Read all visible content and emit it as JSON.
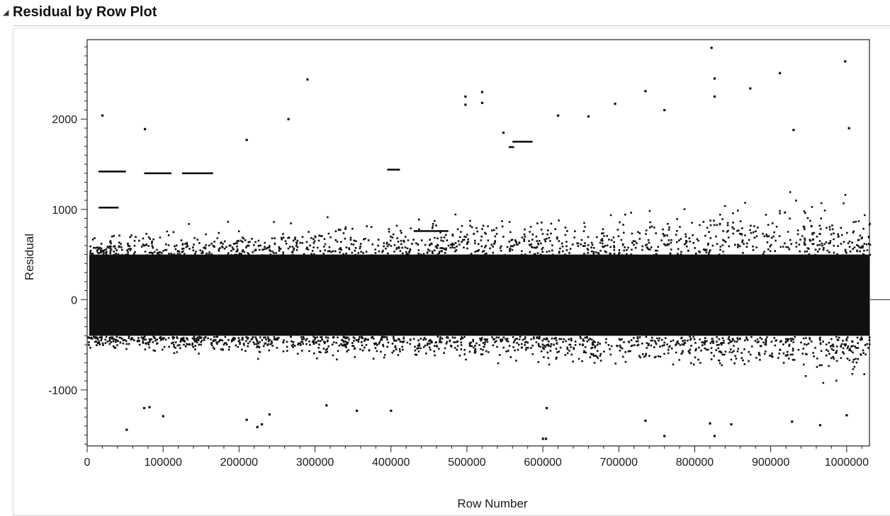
{
  "header": {
    "title": "Residual by Row Plot",
    "disclosure_icon": "triangle-disclosure-icon"
  },
  "chart_data": {
    "type": "scatter",
    "title": "Residual by Row Plot",
    "xlabel": "Row Number",
    "ylabel": "Residual",
    "xlim": [
      0,
      1030000
    ],
    "ylim": [
      -1620,
      2880
    ],
    "x_ticks": [
      0,
      100000,
      200000,
      300000,
      400000,
      500000,
      600000,
      700000,
      800000,
      900000,
      1000000
    ],
    "x_tick_labels": [
      "0",
      "100000",
      "200000",
      "300000",
      "400000",
      "500000",
      "600000",
      "700000",
      "800000",
      "900000",
      "1000000"
    ],
    "y_ticks": [
      -1000,
      0,
      1000,
      2000
    ],
    "y_tick_labels": [
      "-1000",
      "0",
      "1000",
      "2000"
    ],
    "reference_line_y": 0,
    "grid": false,
    "point_color": "#111111",
    "core_band": {
      "low": -400,
      "high": 500
    },
    "outliers": [
      {
        "x": 20000,
        "y": 2040
      },
      {
        "x": 76000,
        "y": 1890
      },
      {
        "x": 290000,
        "y": 2440
      },
      {
        "x": 265000,
        "y": 2000
      },
      {
        "x": 210000,
        "y": 1770
      },
      {
        "x": 498000,
        "y": 2250
      },
      {
        "x": 498000,
        "y": 2160
      },
      {
        "x": 520000,
        "y": 2300
      },
      {
        "x": 520000,
        "y": 2180
      },
      {
        "x": 548000,
        "y": 1850
      },
      {
        "x": 620000,
        "y": 2040
      },
      {
        "x": 660000,
        "y": 2030
      },
      {
        "x": 695000,
        "y": 2170
      },
      {
        "x": 735000,
        "y": 2310
      },
      {
        "x": 760000,
        "y": 2100
      },
      {
        "x": 822000,
        "y": 2790
      },
      {
        "x": 826000,
        "y": 2450
      },
      {
        "x": 826000,
        "y": 2250
      },
      {
        "x": 873000,
        "y": 2340
      },
      {
        "x": 912000,
        "y": 2510
      },
      {
        "x": 998000,
        "y": 2640
      },
      {
        "x": 1003000,
        "y": 1900
      },
      {
        "x": 930000,
        "y": 1880
      },
      {
        "x": 52000,
        "y": -1440
      },
      {
        "x": 75000,
        "y": -1200
      },
      {
        "x": 82000,
        "y": -1190
      },
      {
        "x": 100000,
        "y": -1290
      },
      {
        "x": 210000,
        "y": -1330
      },
      {
        "x": 224000,
        "y": -1410
      },
      {
        "x": 230000,
        "y": -1380
      },
      {
        "x": 240000,
        "y": -1270
      },
      {
        "x": 315000,
        "y": -1170
      },
      {
        "x": 355000,
        "y": -1230
      },
      {
        "x": 400000,
        "y": -1230
      },
      {
        "x": 600000,
        "y": -1540
      },
      {
        "x": 604000,
        "y": -1540
      },
      {
        "x": 605000,
        "y": -1200
      },
      {
        "x": 735000,
        "y": -1340
      },
      {
        "x": 760000,
        "y": -1510
      },
      {
        "x": 820000,
        "y": -1370
      },
      {
        "x": 826000,
        "y": -1510
      },
      {
        "x": 848000,
        "y": -1380
      },
      {
        "x": 928000,
        "y": -1350
      },
      {
        "x": 965000,
        "y": -1390
      },
      {
        "x": 1000000,
        "y": -1280
      }
    ],
    "clusters": [
      {
        "x_from": 15000,
        "x_to": 50000,
        "y": 1430
      },
      {
        "x_from": 75000,
        "x_to": 110000,
        "y": 1410
      },
      {
        "x_from": 125000,
        "x_to": 165000,
        "y": 1410
      },
      {
        "x_from": 395000,
        "x_to": 410000,
        "y": 1450
      },
      {
        "x_from": 430000,
        "x_to": 475000,
        "y": 770
      },
      {
        "x_from": 555000,
        "x_to": 560000,
        "y": 1700
      },
      {
        "x_from": 560000,
        "x_to": 585000,
        "y": 1760
      },
      {
        "x_from": 15000,
        "x_to": 40000,
        "y": 1030
      }
    ]
  }
}
